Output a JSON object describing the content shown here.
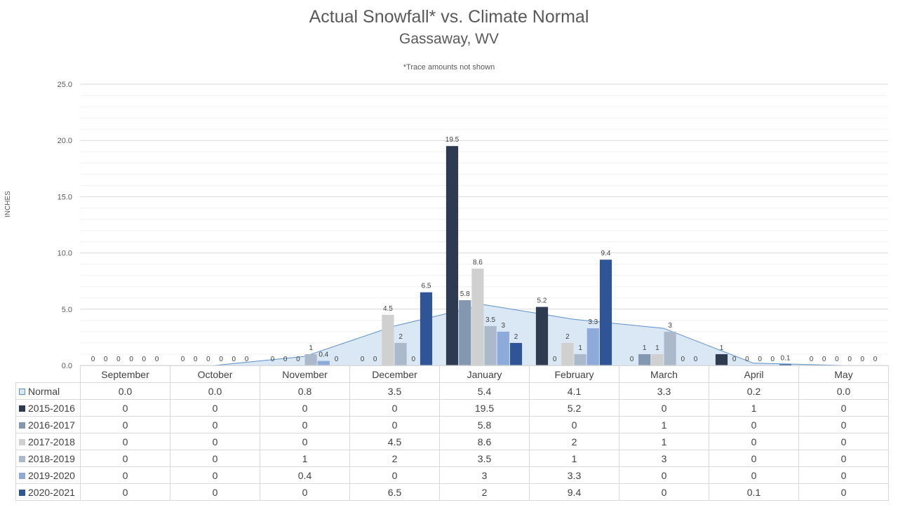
{
  "chart_data": {
    "type": "bar",
    "title": "Actual Snowfall* vs. Climate Normal",
    "subtitle": "Gassaway, WV",
    "note": "*Trace amounts not shown",
    "ylabel": "INCHES",
    "ylim": [
      0,
      25
    ],
    "yticks": [
      "0.0",
      "5.0",
      "10.0",
      "15.0",
      "20.0",
      "25.0"
    ],
    "grid": true,
    "categories": [
      "September",
      "October",
      "November",
      "December",
      "January",
      "February",
      "March",
      "April",
      "May"
    ],
    "area": {
      "name": "Normal",
      "color": "#dae8f5",
      "line_color": "#5b8fc7",
      "values": [
        0.0,
        0.0,
        0.8,
        3.5,
        5.4,
        4.1,
        3.3,
        0.2,
        0.0
      ],
      "display": [
        "0.0",
        "0.0",
        "0.8",
        "3.5",
        "5.4",
        "4.1",
        "3.3",
        "0.2",
        "0.0"
      ]
    },
    "series": [
      {
        "name": "2015-2016",
        "color": "#2e3a50",
        "values": [
          0,
          0,
          0,
          0,
          19.5,
          5.2,
          0,
          1,
          0
        ],
        "display": [
          "0",
          "0",
          "0",
          "0",
          "19.5",
          "5.2",
          "0",
          "1",
          "0"
        ]
      },
      {
        "name": "2016-2017",
        "color": "#8497b0",
        "values": [
          0,
          0,
          0,
          0,
          5.8,
          0,
          1,
          0,
          0
        ],
        "display": [
          "0",
          "0",
          "0",
          "0",
          "5.8",
          "0",
          "1",
          "0",
          "0"
        ]
      },
      {
        "name": "2017-2018",
        "color": "#d0d0d0",
        "values": [
          0,
          0,
          0,
          4.5,
          8.6,
          2,
          1,
          0,
          0
        ],
        "display": [
          "0",
          "0",
          "0",
          "4.5",
          "8.6",
          "2",
          "1",
          "0",
          "0"
        ]
      },
      {
        "name": "2018-2019",
        "color": "#acb9ca",
        "values": [
          0,
          0,
          1,
          2,
          3.5,
          1,
          3,
          0,
          0
        ],
        "display": [
          "0",
          "0",
          "1",
          "2",
          "3.5",
          "1",
          "3",
          "0",
          "0"
        ]
      },
      {
        "name": "2019-2020",
        "color": "#8eaadb",
        "values": [
          0,
          0,
          0.4,
          0,
          3,
          3.3,
          0,
          0,
          0
        ],
        "display": [
          "0",
          "0",
          "0.4",
          "0",
          "3",
          "3.3",
          "0",
          "0",
          "0"
        ]
      },
      {
        "name": "2020-2021",
        "color": "#2f5597",
        "values": [
          0,
          0,
          0,
          6.5,
          2,
          9.4,
          0,
          0.1,
          0
        ],
        "display": [
          "0",
          "0",
          "0",
          "6.5",
          "2",
          "9.4",
          "0",
          "0.1",
          "0"
        ]
      }
    ]
  }
}
